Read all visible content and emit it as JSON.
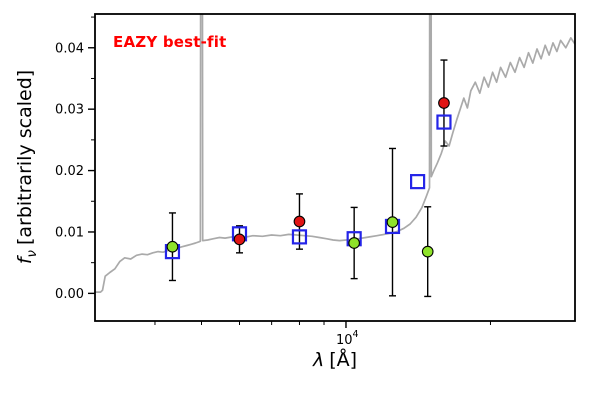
{
  "chart_data": {
    "type": "line+scatter",
    "annotation": "EAZY best-fit",
    "xscale": "log",
    "xlabel_symbol": "λ",
    "xlabel_unit": "[Å]",
    "ylabel_symbol": "f",
    "ylabel_sub": "ν",
    "ylabel_rest": "[arbitrarily scaled]",
    "xlim": [
      3000,
      30000
    ],
    "ylim": [
      -0.0045,
      0.0455
    ],
    "yticks": [
      0,
      0.01,
      0.02,
      0.03,
      0.04
    ],
    "ytick_labels": [
      "0.00",
      "0.01",
      "0.02",
      "0.03",
      "0.04"
    ],
    "xticks": [
      10000
    ],
    "xtick_labels": [
      {
        "base": "10",
        "exp": "4"
      }
    ],
    "xminor": [
      4000,
      5000,
      6000,
      7000,
      8000,
      9000,
      20000
    ],
    "grid": false,
    "legend": "none",
    "colors": {
      "spectrum": "#aaaaaa",
      "model_square": "#2424e8",
      "obs_red": "#e01414",
      "obs_green": "#8fe32a",
      "errorbar": "#000000",
      "annotation": "#ff0000"
    },
    "series": [
      {
        "name": "model-spectrum",
        "type": "line",
        "points": [
          [
            3000,
            0.0002
          ],
          [
            3080,
            0.0002
          ],
          [
            3110,
            0.0005
          ],
          [
            3150,
            0.0028
          ],
          [
            3220,
            0.0034
          ],
          [
            3300,
            0.004
          ],
          [
            3380,
            0.0052
          ],
          [
            3460,
            0.0058
          ],
          [
            3560,
            0.0056
          ],
          [
            3660,
            0.0062
          ],
          [
            3760,
            0.0064
          ],
          [
            3860,
            0.0063
          ],
          [
            3960,
            0.0066
          ],
          [
            4060,
            0.0068
          ],
          [
            4160,
            0.0067
          ],
          [
            4260,
            0.007
          ],
          [
            4360,
            0.0072
          ],
          [
            4460,
            0.0074
          ],
          [
            4560,
            0.0076
          ],
          [
            4660,
            0.0078
          ],
          [
            4760,
            0.008
          ],
          [
            4860,
            0.0082
          ],
          [
            4940,
            0.0084
          ],
          [
            4975,
            0.0085
          ],
          [
            4990,
            0.13
          ],
          [
            5010,
            0.13
          ],
          [
            5030,
            0.0086
          ],
          [
            5150,
            0.0087
          ],
          [
            5300,
            0.0089
          ],
          [
            5450,
            0.0091
          ],
          [
            5600,
            0.009
          ],
          [
            5800,
            0.0092
          ],
          [
            6000,
            0.0093
          ],
          [
            6200,
            0.0092
          ],
          [
            6400,
            0.0094
          ],
          [
            6700,
            0.0093
          ],
          [
            7000,
            0.0095
          ],
          [
            7300,
            0.0094
          ],
          [
            7600,
            0.0096
          ],
          [
            7900,
            0.0095
          ],
          [
            8200,
            0.0094
          ],
          [
            8500,
            0.0093
          ],
          [
            8800,
            0.0091
          ],
          [
            9100,
            0.0089
          ],
          [
            9400,
            0.0087
          ],
          [
            9700,
            0.0086
          ],
          [
            10000,
            0.0087
          ],
          [
            10400,
            0.0088
          ],
          [
            10800,
            0.009
          ],
          [
            11200,
            0.0092
          ],
          [
            11600,
            0.0094
          ],
          [
            12000,
            0.0096
          ],
          [
            12400,
            0.0098
          ],
          [
            12800,
            0.0101
          ],
          [
            13200,
            0.0106
          ],
          [
            13600,
            0.0113
          ],
          [
            14000,
            0.0124
          ],
          [
            14400,
            0.014
          ],
          [
            14700,
            0.0158
          ],
          [
            14930,
            0.0172
          ],
          [
            14975,
            0.13
          ],
          [
            15015,
            0.13
          ],
          [
            15060,
            0.019
          ],
          [
            15200,
            0.0198
          ],
          [
            15500,
            0.0212
          ],
          [
            15800,
            0.0228
          ],
          [
            16100,
            0.0248
          ],
          [
            16400,
            0.024
          ],
          [
            16700,
            0.0262
          ],
          [
            17000,
            0.0282
          ],
          [
            17300,
            0.03
          ],
          [
            17600,
            0.0318
          ],
          [
            17900,
            0.0302
          ],
          [
            18200,
            0.033
          ],
          [
            18600,
            0.0344
          ],
          [
            19000,
            0.0326
          ],
          [
            19400,
            0.0352
          ],
          [
            19800,
            0.0336
          ],
          [
            20200,
            0.036
          ],
          [
            20600,
            0.0344
          ],
          [
            21000,
            0.0368
          ],
          [
            21500,
            0.0352
          ],
          [
            22000,
            0.0376
          ],
          [
            22500,
            0.036
          ],
          [
            23000,
            0.0384
          ],
          [
            23500,
            0.0368
          ],
          [
            24000,
            0.0392
          ],
          [
            24500,
            0.0375
          ],
          [
            25000,
            0.0398
          ],
          [
            25500,
            0.0382
          ],
          [
            26000,
            0.0404
          ],
          [
            26500,
            0.0388
          ],
          [
            27000,
            0.0408
          ],
          [
            27500,
            0.0394
          ],
          [
            28000,
            0.0412
          ],
          [
            28700,
            0.04
          ],
          [
            29400,
            0.0416
          ],
          [
            30000,
            0.0406
          ]
        ]
      },
      {
        "name": "model-photometry",
        "type": "scatter",
        "marker": "open-square",
        "points": [
          [
            4350,
            0.0068
          ],
          [
            6000,
            0.0097
          ],
          [
            8000,
            0.0092
          ],
          [
            10400,
            0.0089
          ],
          [
            12500,
            0.0109
          ],
          [
            14100,
            0.0182
          ],
          [
            16000,
            0.0279
          ]
        ]
      },
      {
        "name": "observed-photometry-red",
        "type": "scatter",
        "marker": "filled-circle",
        "points": [
          [
            6000,
            0.0088,
            0.0022
          ],
          [
            8000,
            0.0117,
            0.0045
          ],
          [
            16000,
            0.031,
            0.007
          ]
        ]
      },
      {
        "name": "observed-photometry-green",
        "type": "scatter",
        "marker": "filled-circle",
        "points": [
          [
            4350,
            0.0076,
            0.0055
          ],
          [
            10400,
            0.0082,
            0.0058
          ],
          [
            12500,
            0.0116,
            0.012
          ],
          [
            14800,
            0.0068,
            0.0073
          ]
        ]
      }
    ]
  }
}
